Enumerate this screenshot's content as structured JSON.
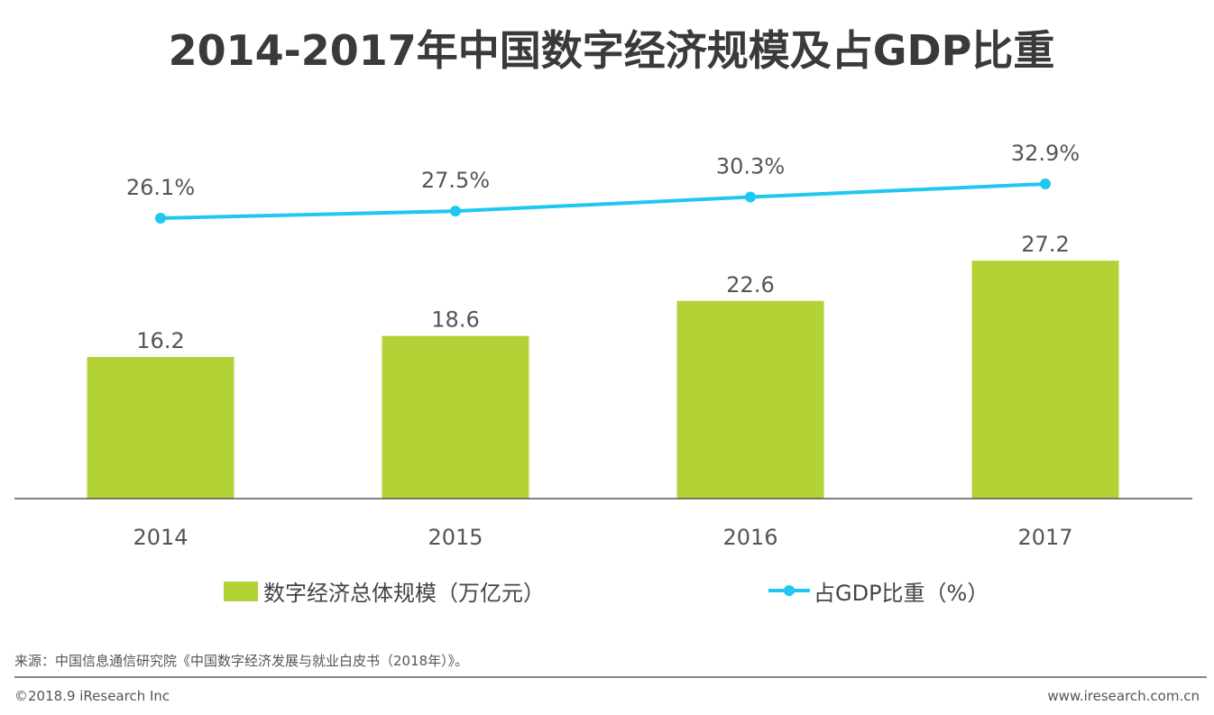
{
  "chart_data": {
    "type": "bar",
    "title": "2014-2017年中国数字经济规模及占GDP比重",
    "categories": [
      "2014",
      "2015",
      "2016",
      "2017"
    ],
    "series": [
      {
        "name": "数字经济总体规模（万亿元）",
        "type": "bar",
        "values": [
          16.2,
          18.6,
          22.6,
          27.2
        ],
        "labels": [
          "16.2",
          "18.6",
          "22.6",
          "27.2"
        ],
        "color": "#b2d235"
      },
      {
        "name": "占GDP比重（%）",
        "type": "line",
        "values": [
          26.1,
          27.5,
          30.3,
          32.9
        ],
        "labels": [
          "26.1%",
          "27.5%",
          "30.3%",
          "32.9%"
        ],
        "color": "#1ec8f0"
      }
    ],
    "legend": "bottom",
    "grid": false
  },
  "footer": {
    "source": "来源：中国信息通信研究院《中国数字经济发展与就业白皮书（2018年）》。",
    "copyright": "©2018.9 iResearch Inc",
    "website": "www.iresearch.com.cn"
  }
}
